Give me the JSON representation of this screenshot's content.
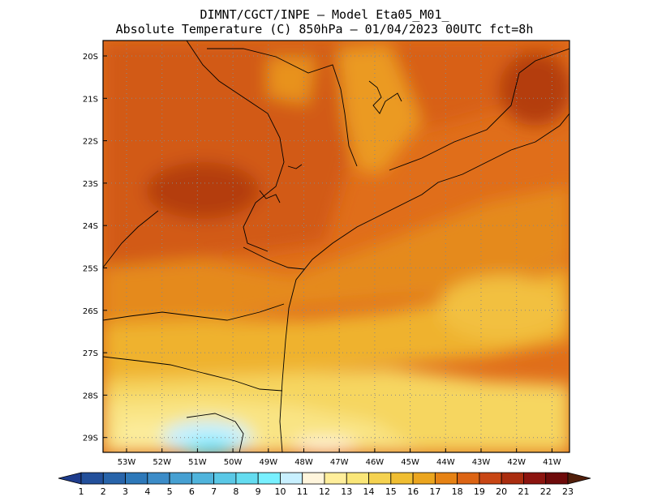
{
  "header": {
    "line1": "DIMNT/CGCT/INPE —  Model Eta05_M01_",
    "line2": "Absolute Temperature (C) 850hPa —  01/04/2023 00UTC fct=8h"
  },
  "map": {
    "lat_labels": [
      "20S",
      "21S",
      "22S",
      "23S",
      "24S",
      "25S",
      "26S",
      "27S",
      "28S",
      "29S"
    ],
    "lon_labels": [
      "53W",
      "52W",
      "51W",
      "50W",
      "49W",
      "48W",
      "47W",
      "46W",
      "45W",
      "44W",
      "43W",
      "42W",
      "41W"
    ],
    "gridlines": "dotted"
  },
  "colorbar": {
    "values": [
      "1",
      "2",
      "3",
      "4",
      "5",
      "6",
      "7",
      "8",
      "9",
      "10",
      "11",
      "12",
      "13",
      "14",
      "15",
      "16",
      "17",
      "18",
      "19",
      "20",
      "21",
      "22",
      "23"
    ],
    "colors": [
      "#1e3c8c",
      "#23509b",
      "#2864aa",
      "#2d78b9",
      "#3c8cc8",
      "#46a0d2",
      "#50b4dc",
      "#5ac8e6",
      "#64dcf0",
      "#78f0ff",
      "#c8f0ff",
      "#fff5dc",
      "#ffee9b",
      "#fae678",
      "#f5d250",
      "#f0be32",
      "#eba51e",
      "#e68214",
      "#dc6414",
      "#c84614",
      "#aa2d0f",
      "#8c140f",
      "#6e0a0a",
      "#501e0a"
    ]
  }
}
